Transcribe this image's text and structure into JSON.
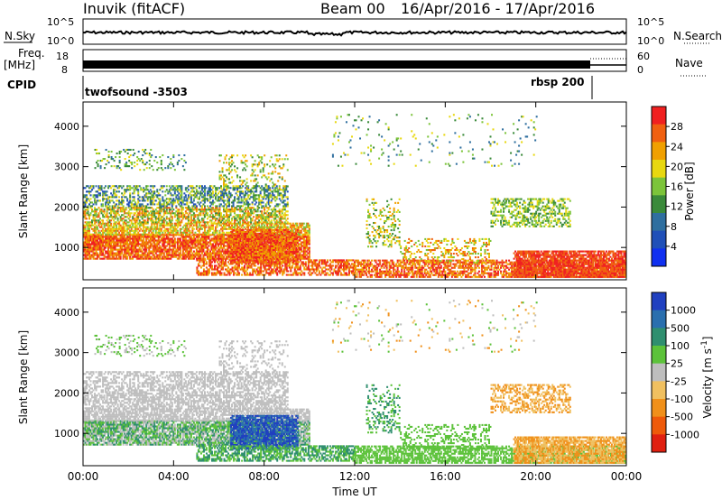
{
  "header": {
    "station": "Inuvik (fitACF)",
    "beam": "Beam 00",
    "date_range": "16/Apr/2016 - 17/Apr/2016"
  },
  "top_panels": {
    "nsky_label": "N.Sky",
    "nsky_ticks": [
      "10^5",
      "10^0"
    ],
    "nsearch_label": "N.Search",
    "nsearch_ticks": [
      "10^5",
      "10^0"
    ],
    "freq_label": "Freq.",
    "freq_unit": "[MHz]",
    "freq_ticks": [
      "18",
      "8"
    ],
    "nave_label": "Nave",
    "nave_ticks": [
      "60",
      "0"
    ],
    "cpid_label": "CPID",
    "cpid_segments": [
      "twofsound -3503",
      "rbsp 200"
    ]
  },
  "colors": {
    "power_scale": [
      "#1030f0",
      "#2050b8",
      "#2f6f9f",
      "#3a8a3a",
      "#7cc43a",
      "#e8d810",
      "#f0a000",
      "#f06010",
      "#f02020"
    ],
    "velocity_scale": [
      "#2040c0",
      "#2a6fae",
      "#2f8f6f",
      "#5cc23a",
      "#bebebe",
      "#f0c060",
      "#f0901a",
      "#ee5a0a",
      "#e02010"
    ]
  },
  "chart_data": [
    {
      "type": "heatmap",
      "title": "",
      "ylabel": "Slant Range [km]",
      "xlabel": "",
      "x_ticks": [
        "00:00",
        "04:00",
        "08:00",
        "12:00",
        "16:00",
        "20:00",
        "00:00"
      ],
      "y_ticks": [
        "1000",
        "2000",
        "3000",
        "4000"
      ],
      "ylim": [
        200,
        4600
      ],
      "colorbar": {
        "label": "Power [dB]",
        "ticks": [
          "4",
          "8",
          "12",
          "16",
          "20",
          "24",
          "28"
        ],
        "range": [
          0,
          32
        ]
      }
    },
    {
      "type": "heatmap",
      "title": "",
      "ylabel": "Slant Range [km]",
      "xlabel": "Time UT",
      "x_ticks": [
        "00:00",
        "04:00",
        "08:00",
        "12:00",
        "16:00",
        "20:00",
        "00:00"
      ],
      "y_ticks": [
        "1000",
        "2000",
        "3000",
        "4000"
      ],
      "ylim": [
        200,
        4600
      ],
      "colorbar": {
        "label": "Velocity [m s^-1]",
        "ticks": [
          "1000",
          "500",
          "100",
          "25",
          "-25",
          "-100",
          "-500",
          "-1000"
        ]
      }
    }
  ]
}
